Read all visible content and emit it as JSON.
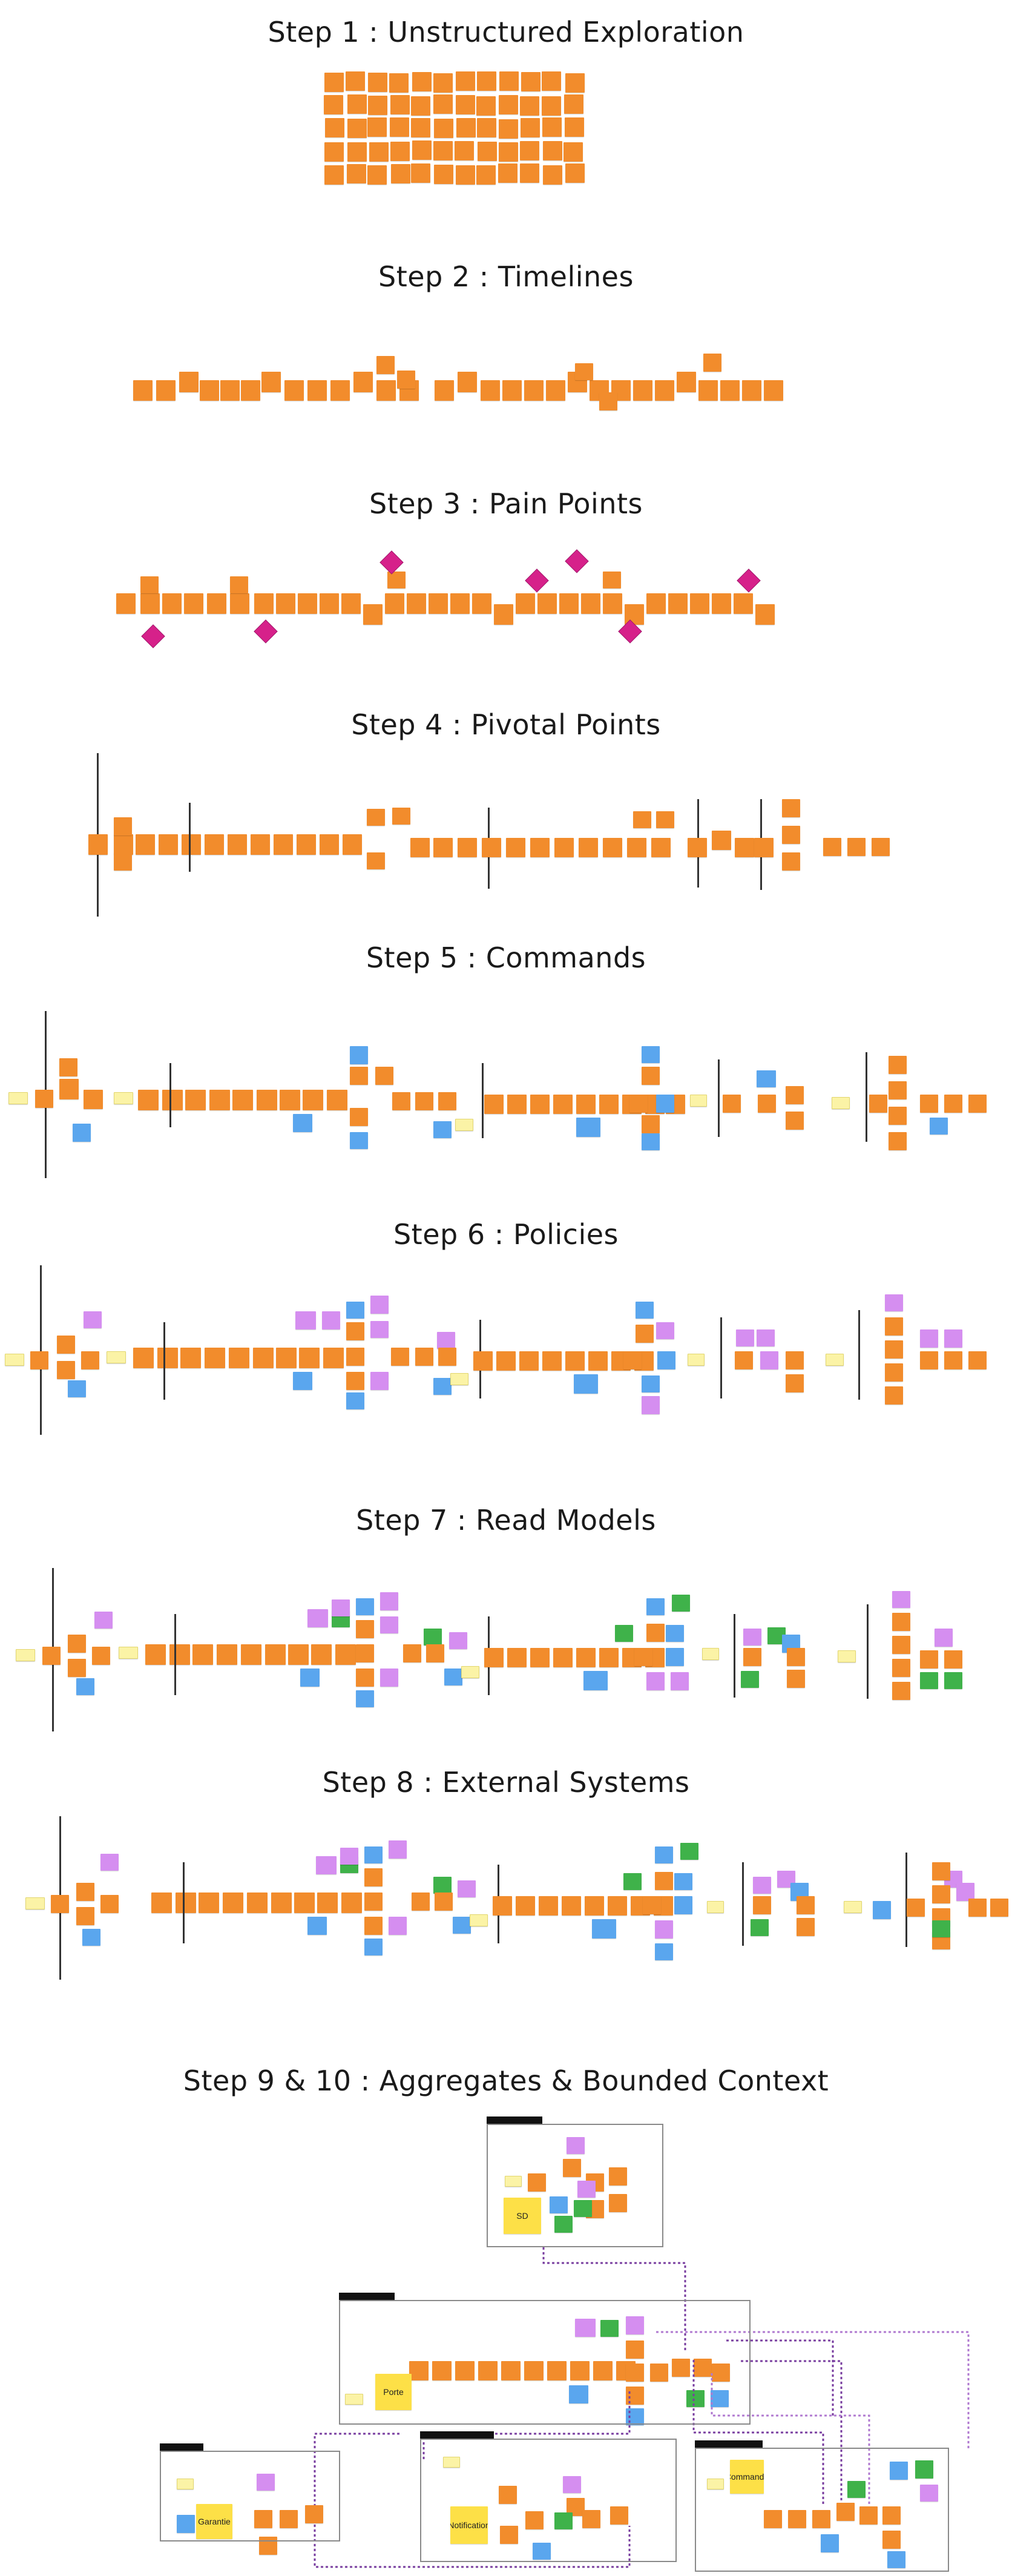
{
  "steps": [
    {
      "title": "Step 1 : Unstructured Exploration"
    },
    {
      "title": "Step 2 : Timelines"
    },
    {
      "title": "Step 3 : Pain Points"
    },
    {
      "title": "Step 4 : Pivotal Points"
    },
    {
      "title": "Step 5 : Commands"
    },
    {
      "title": "Step 6 : Policies"
    },
    {
      "title": "Step 7 : Read Models"
    },
    {
      "title": "Step 8 : External Systems"
    },
    {
      "title": "Step 9 & 10 : Aggregates & Bounded Context"
    }
  ],
  "aggregates": [
    "SD",
    "Porte",
    "Garantie",
    "Notification",
    "Commande"
  ],
  "colors": {
    "event": "#f28c2c",
    "command": "#5aa6ee",
    "policy": "#d58ef0",
    "read_model": "#3fb24a",
    "actor": "#fbf3a6",
    "hotspot": "#d6218a",
    "aggregate": "#fde047"
  }
}
